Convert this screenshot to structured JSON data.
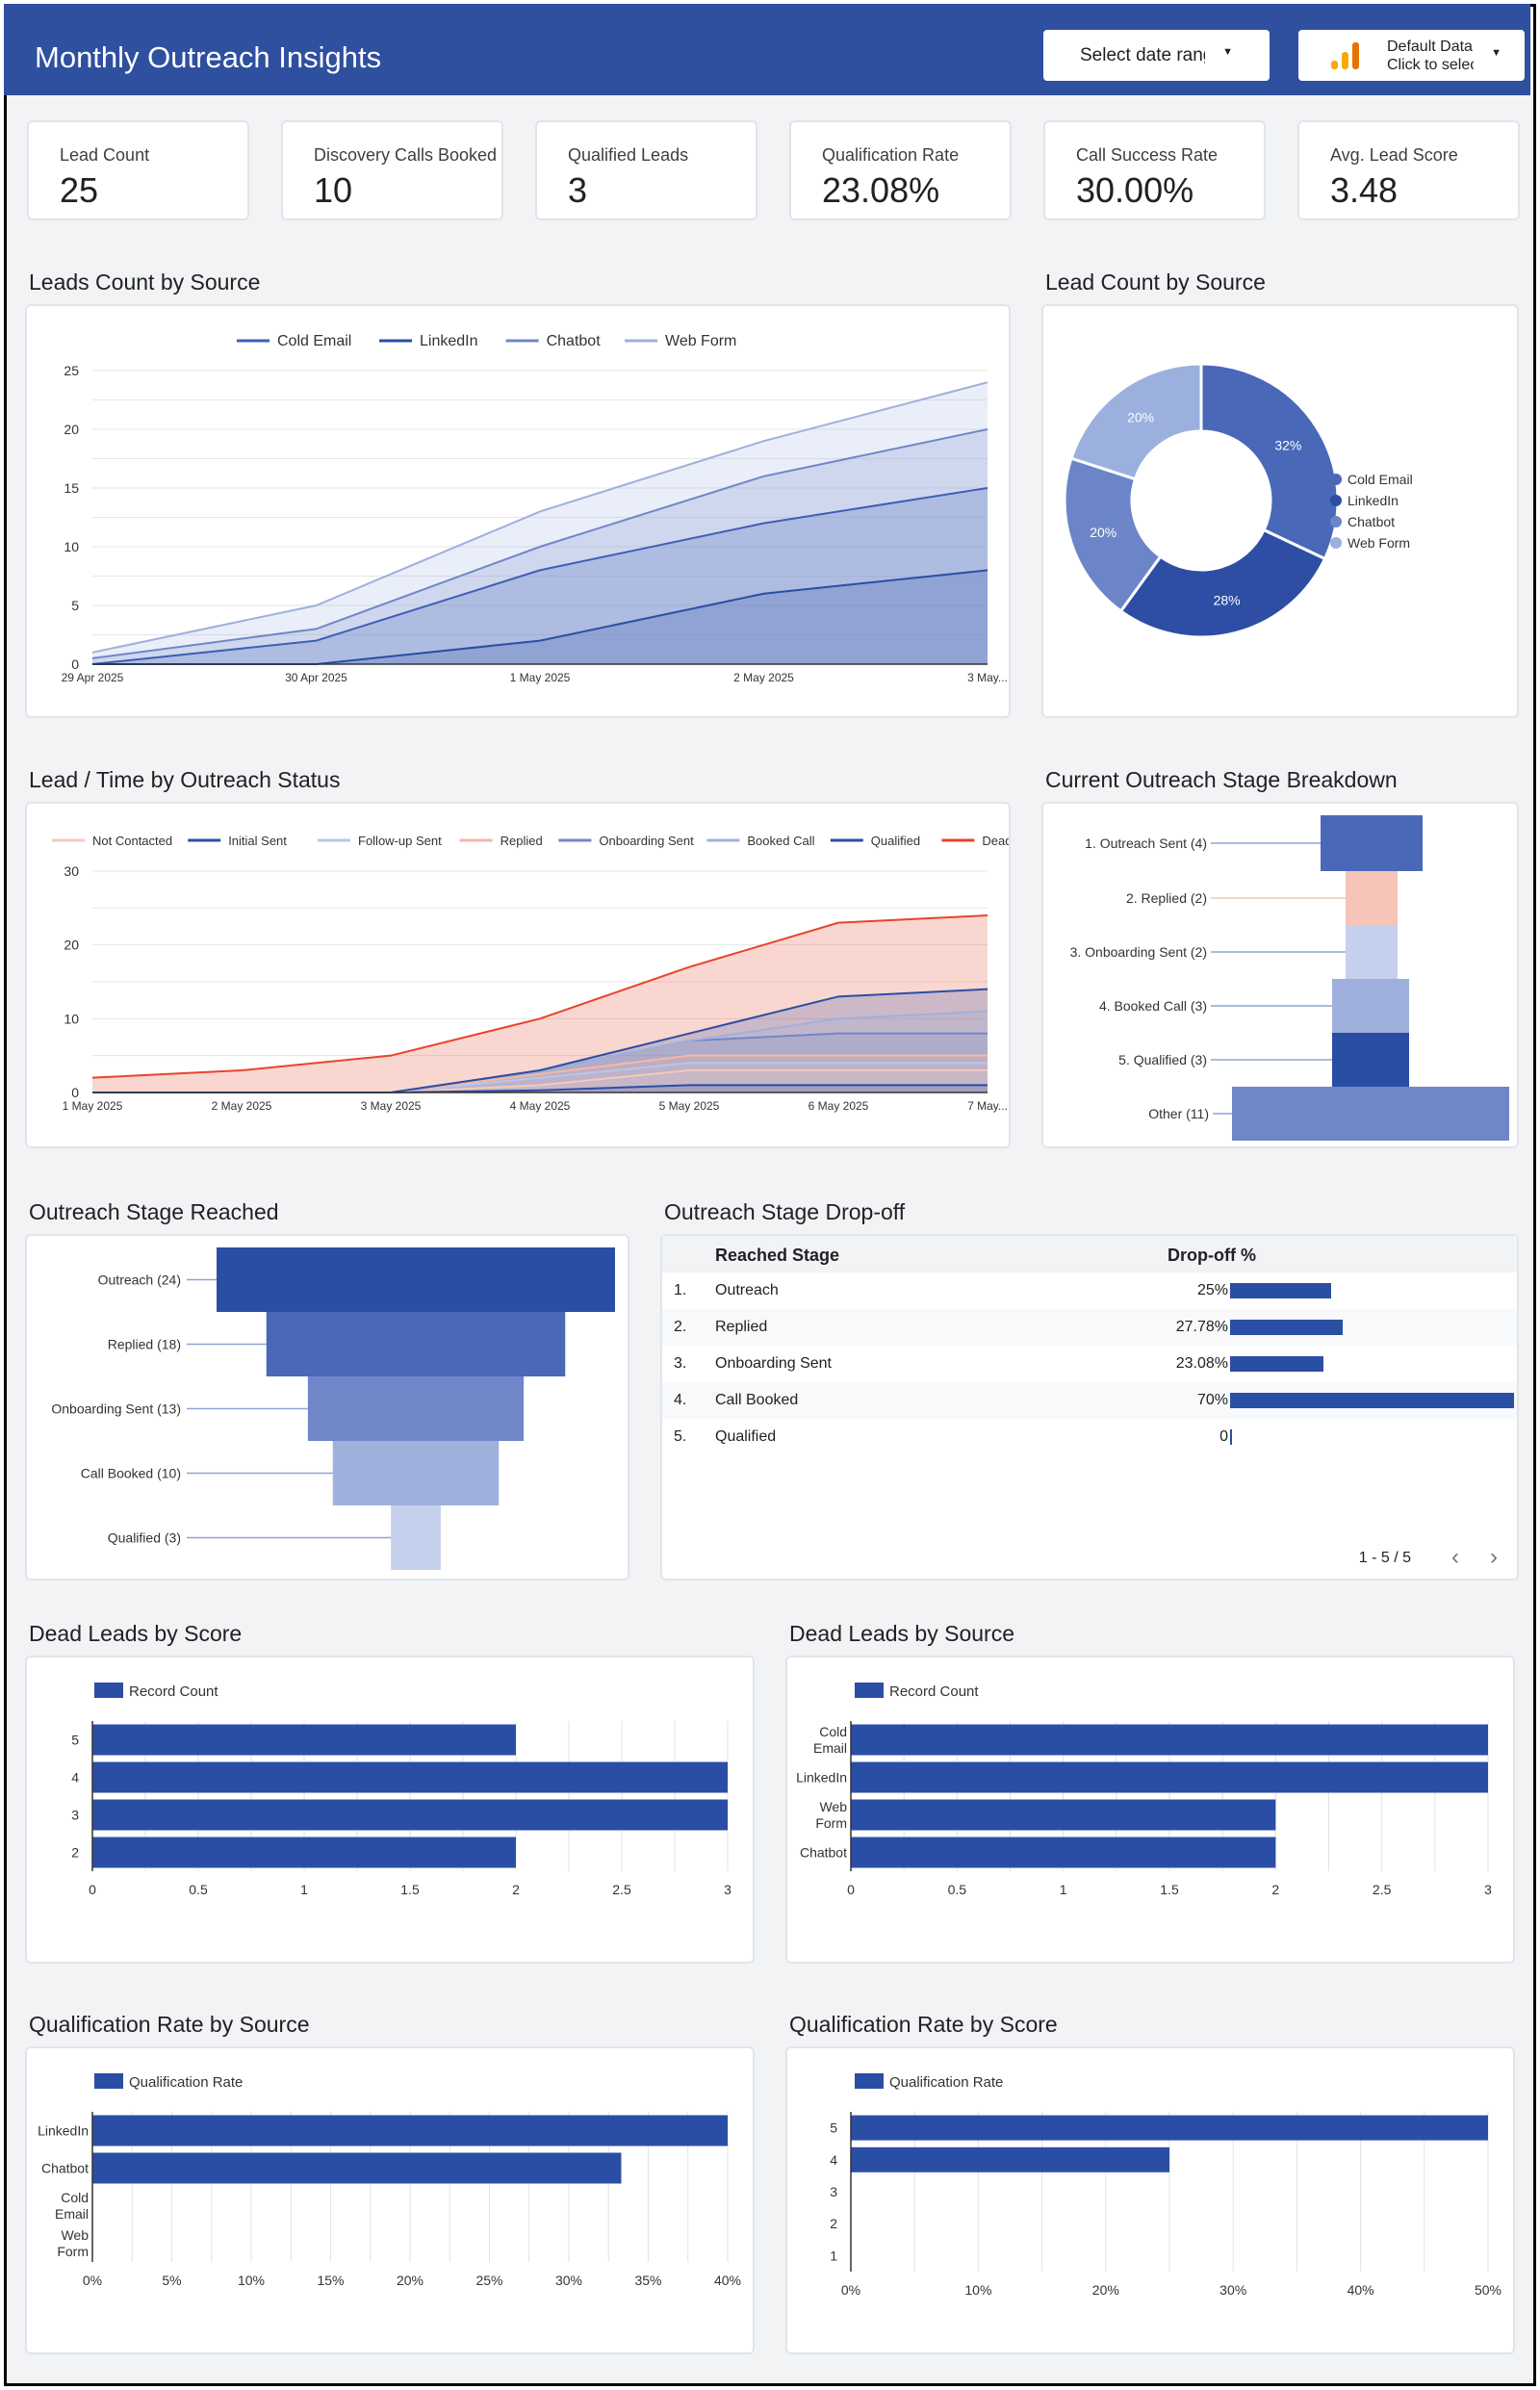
{
  "header": {
    "title": "Monthly Outreach Insights",
    "date_control": "Select date range",
    "data_source_line1": "Default Data",
    "data_source_line2": "Click to select"
  },
  "kpis": [
    {
      "label": "Lead Count",
      "value": "25"
    },
    {
      "label": "Discovery Calls Booked",
      "value": "10"
    },
    {
      "label": "Qualified Leads",
      "value": "3"
    },
    {
      "label": "Qualification Rate",
      "value": "23.08%"
    },
    {
      "label": "Call Success Rate",
      "value": "30.00%"
    },
    {
      "label": "Avg. Lead Score",
      "value": "3.48"
    }
  ],
  "sections": {
    "leads_by_source_line": "Leads Count by Source",
    "leads_by_source_pie": "Lead Count by Source",
    "lead_time_status": "Lead / Time by Outreach Status",
    "stage_breakdown": "Current Outreach Stage Breakdown",
    "stage_reached": "Outreach Stage Reached",
    "stage_dropoff": "Outreach Stage Drop-off",
    "dead_by_score": "Dead Leads by Score",
    "dead_by_source": "Dead Leads by Source",
    "qual_by_source": "Qualification Rate by Source",
    "qual_by_score": "Qualification Rate by Score"
  },
  "dropoff_table": {
    "headers": [
      "Reached Stage",
      "Drop-off %"
    ],
    "rows": [
      {
        "idx": "1.",
        "stage": "Outreach",
        "label": "25%",
        "value": 25
      },
      {
        "idx": "2.",
        "stage": "Replied",
        "label": "27.78%",
        "value": 27.78
      },
      {
        "idx": "3.",
        "stage": "Onboarding Sent",
        "label": "23.08%",
        "value": 23.08
      },
      {
        "idx": "4.",
        "stage": "Call Booked",
        "label": "70%",
        "value": 70
      },
      {
        "idx": "5.",
        "stage": "Qualified",
        "label": "0",
        "value": 0
      }
    ],
    "pager": "1 - 5 / 5"
  },
  "colors": {
    "header": "#2f4f9f",
    "bar": "#2b4ea5",
    "dead": "#e8442a"
  },
  "chart_data": [
    {
      "id": "leads_by_source_line",
      "type": "area",
      "x": [
        "29 Apr 2025",
        "30 Apr 2025",
        "1 May 2025",
        "2 May 2025",
        "3 May..."
      ],
      "series": [
        {
          "name": "Cold Email",
          "values": [
            0,
            2,
            8,
            12,
            15
          ],
          "color": "#3f5fb5"
        },
        {
          "name": "LinkedIn",
          "values": [
            0,
            0,
            2,
            6,
            8
          ],
          "color": "#2b4ea5"
        },
        {
          "name": "Chatbot",
          "values": [
            0.5,
            3,
            10,
            16,
            20
          ],
          "color": "#6f87c9"
        },
        {
          "name": "Web Form",
          "values": [
            1,
            5,
            13,
            19,
            24
          ],
          "color": "#9fb0dd"
        }
      ],
      "ylim": [
        0,
        25
      ],
      "yticks": [
        "0",
        "5",
        "10",
        "15",
        "20",
        "25"
      ],
      "legend": "top"
    },
    {
      "id": "leads_by_source_pie",
      "type": "pie",
      "categories": [
        "Cold Email",
        "LinkedIn",
        "Chatbot",
        "Web Form"
      ],
      "values": [
        32,
        28,
        20,
        20
      ],
      "labels": [
        "32%",
        "28%",
        "20%",
        "20%"
      ],
      "colors": [
        "#4968b8",
        "#2e4ea5",
        "#6b85c8",
        "#9cb0dd"
      ],
      "legend": "right"
    },
    {
      "id": "lead_time_status",
      "type": "area",
      "x": [
        "1 May 2025",
        "2 May 2025",
        "3 May 2025",
        "4 May 2025",
        "5 May 2025",
        "6 May 2025",
        "7 May..."
      ],
      "series": [
        {
          "name": "Not Contacted",
          "values": [
            0,
            0,
            0,
            1,
            3,
            3,
            3
          ],
          "color": "#f3c9bd"
        },
        {
          "name": "Initial Sent",
          "values": [
            0,
            0,
            0,
            0.3,
            1,
            1,
            1
          ],
          "color": "#2b4ea5"
        },
        {
          "name": "Follow-up Sent",
          "values": [
            0,
            0,
            0,
            2,
            4,
            4,
            4
          ],
          "color": "#b9c6e8"
        },
        {
          "name": "Replied",
          "values": [
            0,
            0,
            0,
            2.5,
            5,
            5,
            5
          ],
          "color": "#f6b7a4"
        },
        {
          "name": "Onboarding Sent",
          "values": [
            0,
            0,
            0,
            3,
            7,
            8,
            8
          ],
          "color": "#6f87c9"
        },
        {
          "name": "Booked Call",
          "values": [
            0,
            0,
            0,
            3,
            7,
            10,
            11
          ],
          "color": "#9fb0dd"
        },
        {
          "name": "Qualified",
          "values": [
            0,
            0,
            0,
            3,
            8,
            13,
            14
          ],
          "color": "#2b4ea5"
        },
        {
          "name": "Dead",
          "values": [
            2,
            3,
            5,
            10,
            17,
            23,
            24
          ],
          "color": "#e8442a"
        }
      ],
      "ylim": [
        0,
        30
      ],
      "yticks": [
        "0",
        "10",
        "20",
        "30"
      ],
      "legend": "top"
    },
    {
      "id": "stage_breakdown",
      "type": "bar",
      "categories": [
        "1. Outreach Sent (4)",
        "2. Replied (2)",
        "3. Onboarding Sent (2)",
        "4. Booked Call (3)",
        "5. Qualified (3)",
        "Other (11)"
      ],
      "values": [
        4,
        2,
        2,
        3,
        3,
        11
      ],
      "colors": [
        "#4968b8",
        "#f6c4b8",
        "#c5d0ec",
        "#9fb0dd",
        "#2b4ea5",
        "#6f87c9"
      ]
    },
    {
      "id": "stage_reached",
      "type": "bar",
      "categories": [
        "Outreach (24)",
        "Replied (18)",
        "Onboarding Sent (13)",
        "Call Booked (10)",
        "Qualified (3)"
      ],
      "values": [
        24,
        18,
        13,
        10,
        3
      ],
      "colors": [
        "#2b4ea5",
        "#4968b8",
        "#6f87c9",
        "#9fb0dd",
        "#c5d0ec"
      ]
    },
    {
      "id": "dead_by_score",
      "type": "bar",
      "categories": [
        "5",
        "4",
        "3",
        "2"
      ],
      "values": [
        2,
        3,
        3,
        2
      ],
      "xlim": [
        0,
        3
      ],
      "xticks": [
        "0",
        "0.5",
        "1",
        "1.5",
        "2",
        "2.5",
        "3"
      ],
      "series_name": "Record Count"
    },
    {
      "id": "dead_by_source",
      "type": "bar",
      "categories": [
        "Cold Email",
        "LinkedIn",
        "Web Form",
        "Chatbot"
      ],
      "values": [
        3,
        3,
        2,
        2
      ],
      "xlim": [
        0,
        3
      ],
      "xticks": [
        "0",
        "0.5",
        "1",
        "1.5",
        "2",
        "2.5",
        "3"
      ],
      "series_name": "Record Count"
    },
    {
      "id": "qual_by_source",
      "type": "bar",
      "categories": [
        "LinkedIn",
        "Chatbot",
        "Cold Email",
        "Web Form"
      ],
      "values": [
        40,
        33.3,
        0,
        0
      ],
      "xlim": [
        0,
        40
      ],
      "xticks": [
        "0%",
        "5%",
        "10%",
        "15%",
        "20%",
        "25%",
        "30%",
        "35%",
        "40%"
      ],
      "series_name": "Qualification Rate"
    },
    {
      "id": "qual_by_score",
      "type": "bar",
      "categories": [
        "5",
        "4",
        "3",
        "2",
        "1"
      ],
      "values": [
        50,
        25,
        0,
        0,
        0
      ],
      "xlim": [
        0,
        50
      ],
      "xticks": [
        "0%",
        "10%",
        "20%",
        "30%",
        "40%",
        "50%"
      ],
      "series_name": "Qualification Rate"
    }
  ]
}
